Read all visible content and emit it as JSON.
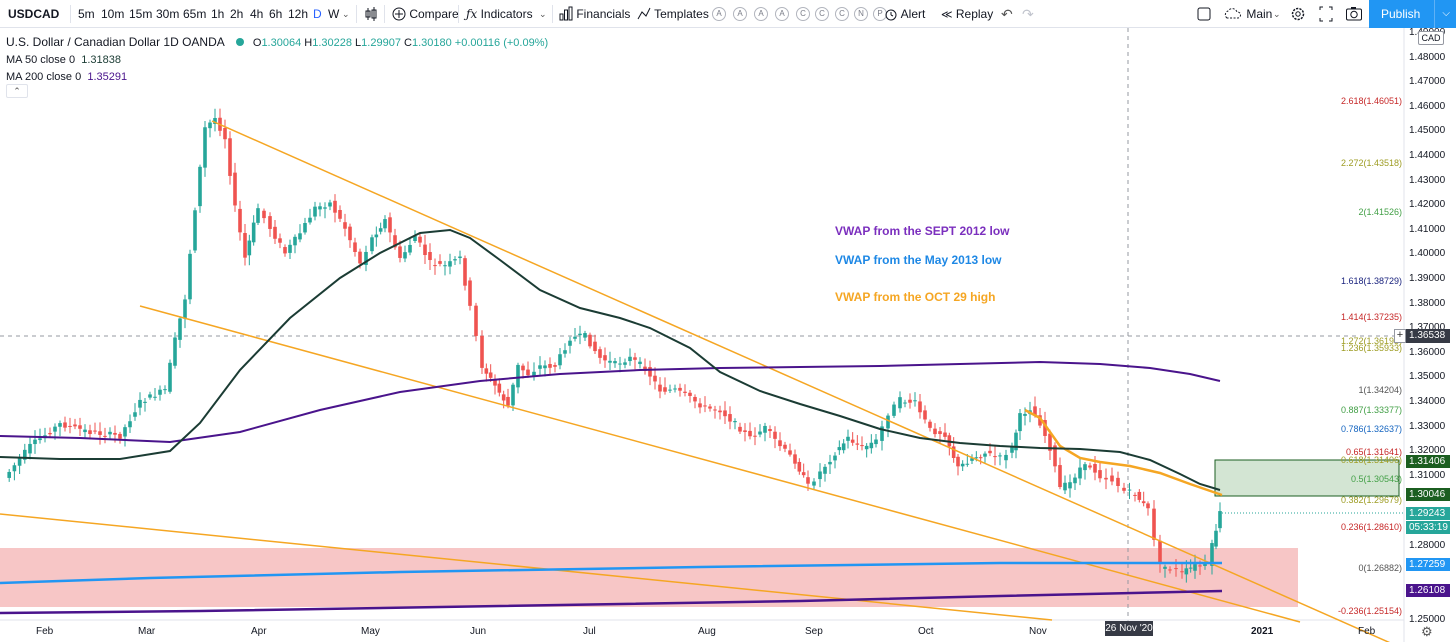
{
  "toolbar": {
    "symbol": "USDCAD",
    "timeframes": [
      "5m",
      "10m",
      "15m",
      "30m",
      "65m",
      "1h",
      "2h",
      "4h",
      "6h",
      "12h",
      "D",
      "W"
    ],
    "active_timeframe": "D",
    "compare_label": "Compare",
    "indicators_label": "Indicators",
    "financials_label": "Financials",
    "templates_label": "Templates",
    "alert_label": "Alert",
    "replay_label": "Replay",
    "layout_label": "Main",
    "publish_label": "Publish",
    "alert_letters": [
      "A",
      "A",
      "A",
      "A",
      "C",
      "C",
      "C",
      "N",
      "P"
    ],
    "icons": [
      "bar-style-icon",
      "plus-circle-icon",
      "fx-icon",
      "financials-icon",
      "templates-icon",
      "alert-icon",
      "replay-icon",
      "undo-icon",
      "redo-icon",
      "square-icon",
      "cloud-icon",
      "settings-icon",
      "fullscreen-icon",
      "camera-icon"
    ]
  },
  "legend": {
    "title": "U.S. Dollar / Canadian Dollar  1D  OANDA",
    "o_label": "O",
    "o": "1.30064",
    "h_label": "H",
    "h": "1.30228",
    "l_label": "L",
    "l": "1.29907",
    "c_label": "C",
    "c": "1.30180",
    "change": "+0.00116 (+0.09%)",
    "ma50_label": "MA 50 close 0",
    "ma50": "1.31838",
    "ma200_label": "MA 200 close 0",
    "ma200": "1.35291"
  },
  "annotations": [
    {
      "text": "VWAP from the SEPT 2012 low",
      "color": "#7b2fbe"
    },
    {
      "text": "VWAP from the May 2013 low",
      "color": "#1e88e5"
    },
    {
      "text": "VWAP from the OCT 29 high",
      "color": "#f5a623"
    }
  ],
  "price_scale": {
    "currency": "CAD",
    "labels": [
      "1.49000",
      "1.48000",
      "1.47000",
      "1.46000",
      "1.45000",
      "1.44000",
      "1.43000",
      "1.42000",
      "1.41000",
      "1.40000",
      "1.39000",
      "1.38000",
      "1.37000",
      "1.36000",
      "1.35000",
      "1.34000",
      "1.33000",
      "1.32000",
      "1.31000",
      "1.28000",
      "1.25000"
    ],
    "crosshair_price": "1.36538",
    "tags": [
      {
        "text": "1.31406",
        "color": "#1b5e20"
      },
      {
        "text": "1.30046",
        "color": "#1b5e20"
      },
      {
        "text": "1.29243",
        "color": "#26a69a"
      },
      {
        "text": "05:33:19",
        "color": "#26a69a"
      },
      {
        "text": "1.27259",
        "color": "#2196f3"
      },
      {
        "text": "1.26108",
        "color": "#4a148c"
      }
    ]
  },
  "fib_levels": [
    {
      "text": "2.618(1.46051)",
      "color": "#c62828"
    },
    {
      "text": "2.272(1.43518)",
      "color": "#9e9d24"
    },
    {
      "text": "2(1.41526)",
      "color": "#43a047"
    },
    {
      "text": "1.618(1.38729)",
      "color": "#1a237e"
    },
    {
      "text": "1.414(1.37235)",
      "color": "#c62828"
    },
    {
      "text": "1.272(1.36195)",
      "color": "#9e9d24"
    },
    {
      "text": "1.236(1.35933)",
      "color": "#9e9d24"
    },
    {
      "text": "1(1.34204)",
      "color": "#555555"
    },
    {
      "text": "0.887(1.33377)",
      "color": "#43a047"
    },
    {
      "text": "0.786(1.32637)",
      "color": "#1565c0"
    },
    {
      "text": "0.65(1.31641)",
      "color": "#c62828"
    },
    {
      "text": "0.618(1.31406)",
      "color": "#9e9d24"
    },
    {
      "text": "0.5(1.30543)",
      "color": "#43a047"
    },
    {
      "text": "0.382(1.29679)",
      "color": "#9e9d24"
    },
    {
      "text": "0.236(1.28610)",
      "color": "#c62828"
    },
    {
      "text": "0(1.26882)",
      "color": "#555555"
    },
    {
      "text": "-0.236(1.25154)",
      "color": "#c62828"
    }
  ],
  "time_axis": {
    "labels": [
      "Feb",
      "Mar",
      "Apr",
      "May",
      "Jun",
      "Jul",
      "Aug",
      "Sep",
      "Oct",
      "Nov",
      "2021",
      "Feb"
    ],
    "crosshair_date": "26 Nov '20"
  },
  "colors": {
    "up": "#26a69a",
    "down": "#ef5350",
    "ma50": "#1b3c34",
    "ma200": "#4a148c",
    "vwap_may": "#2196f3",
    "vwap_oct": "#f5a623",
    "trendline": "#f5a623",
    "zone_red": "#f7c6c6",
    "zone_green": "#d3e5d3"
  }
}
